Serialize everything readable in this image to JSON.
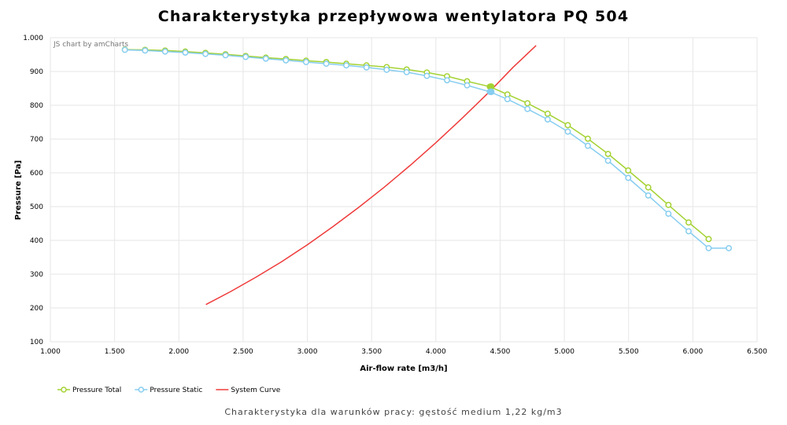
{
  "title": "Charakterystyka przepływowa wentylatora PQ 504",
  "caption": "Charakterystyka dla warunków pracy: gęstość medium 1,22 kg/m3",
  "credit": "JS chart by amCharts",
  "chart_data": {
    "type": "line",
    "xlabel": "Air-flow rate [m3/h]",
    "ylabel": "Pressure [Pa]",
    "xlim": [
      1000,
      6500
    ],
    "ylim": [
      100,
      1000
    ],
    "x_ticks": [
      1000,
      1500,
      2000,
      2500,
      3000,
      3500,
      4000,
      4500,
      5000,
      5500,
      6000,
      6500
    ],
    "x_tick_labels": [
      "1.000",
      "1.500",
      "2.000",
      "2.500",
      "3.000",
      "3.500",
      "4.000",
      "4.500",
      "5.000",
      "5.500",
      "6.000",
      "6.500"
    ],
    "y_ticks": [
      100,
      200,
      300,
      400,
      500,
      600,
      700,
      800,
      900,
      1000
    ],
    "y_tick_labels": [
      "100",
      "200",
      "300",
      "400",
      "500",
      "600",
      "700",
      "800",
      "900",
      "1.000"
    ],
    "grid": true,
    "legend_position": "bottom-left",
    "series": [
      {
        "name": "Pressure Total",
        "color": "#a4d233",
        "marker": "circle",
        "x": [
          1580,
          1737,
          1893,
          2050,
          2207,
          2363,
          2520,
          2677,
          2833,
          2990,
          3147,
          3303,
          3460,
          3617,
          3773,
          3930,
          4087,
          4243,
          4420,
          4557,
          4713,
          4870,
          5027,
          5183,
          5340,
          5497,
          5653,
          5810,
          5967,
          6123
        ],
        "y": [
          965,
          964,
          962,
          959,
          955,
          951,
          946,
          941,
          937,
          932,
          928,
          923,
          918,
          913,
          906,
          897,
          886,
          871,
          855,
          832,
          806,
          775,
          741,
          701,
          656,
          607,
          557,
          505,
          453,
          404
        ]
      },
      {
        "name": "Pressure Static",
        "color": "#87cdf0",
        "marker": "circle",
        "x": [
          1580,
          1737,
          1893,
          2050,
          2207,
          2363,
          2520,
          2677,
          2833,
          2990,
          3147,
          3303,
          3460,
          3617,
          3773,
          3930,
          4087,
          4243,
          4420,
          4557,
          4713,
          4870,
          5027,
          5183,
          5340,
          5497,
          5653,
          5810,
          5967,
          6123,
          6280
        ],
        "y": [
          964,
          962,
          959,
          956,
          952,
          948,
          943,
          938,
          933,
          928,
          923,
          918,
          912,
          905,
          898,
          887,
          874,
          859,
          840,
          818,
          789,
          758,
          722,
          680,
          636,
          585,
          533,
          479,
          427,
          377,
          377
        ]
      },
      {
        "name": "System Curve",
        "color": "#ef3b3b",
        "marker": "none",
        "x": [
          2210,
          2400,
          2600,
          2800,
          3000,
          3200,
          3400,
          3600,
          3800,
          4000,
          4200,
          4430,
          4600,
          4780
        ],
        "y": [
          210,
          248,
          291,
          337,
          387,
          441,
          498,
          558,
          622,
          689,
          760,
          845,
          912,
          977
        ]
      }
    ],
    "operating_point": {
      "x": 4430,
      "y_total": 855,
      "y_static": 840
    }
  }
}
